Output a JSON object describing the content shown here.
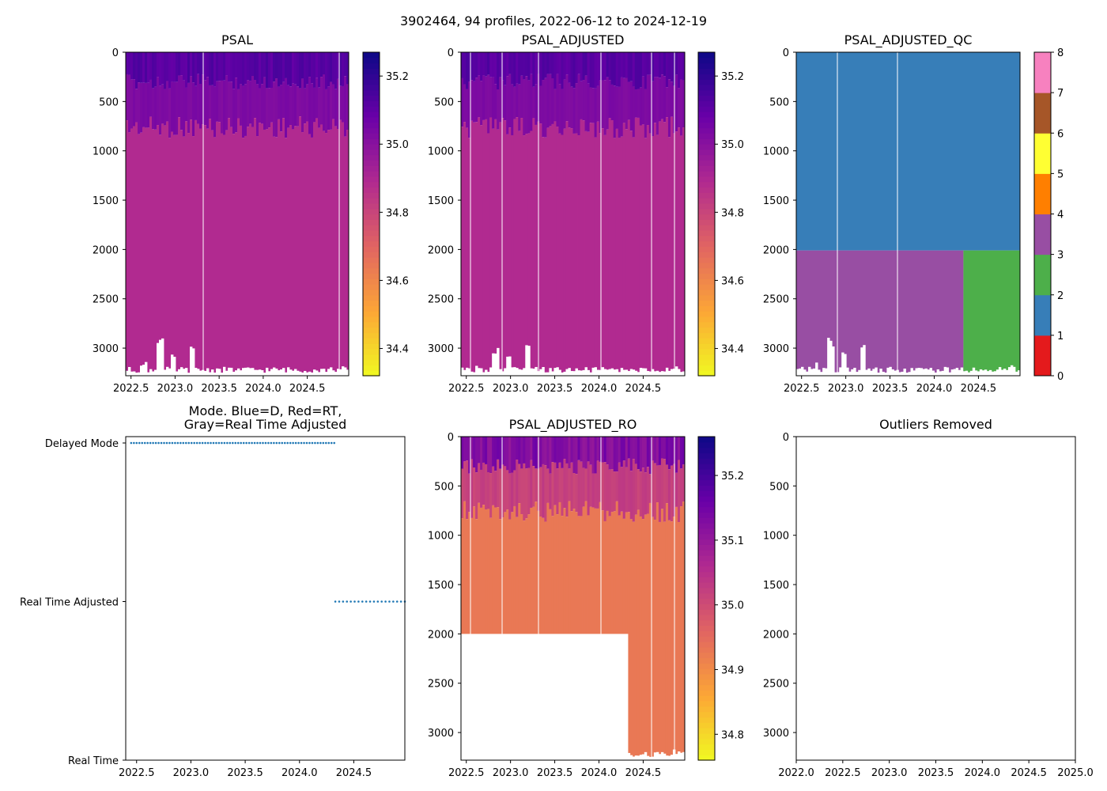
{
  "suptitle": "3902464, 94 profiles, 2022-06-12 to 2024-12-19",
  "colors": {
    "plasma": [
      "#f0f921",
      "#fca636",
      "#e16462",
      "#b12a90",
      "#6a00a8",
      "#0d0887"
    ],
    "set1": [
      "#e41a1c",
      "#377eb8",
      "#4daf4a",
      "#984ea3",
      "#ff7f00",
      "#ffff33",
      "#a65628",
      "#f781bf",
      "#999999"
    ],
    "mode_dot": "#1f77b4"
  },
  "chart_data": [
    {
      "id": "psal",
      "type": "heatmap",
      "title": "PSAL",
      "xticks": [
        "2022.5",
        "2023.0",
        "2023.5",
        "2024.0",
        "2024.5"
      ],
      "xtick_values": [
        2022.5,
        2023.0,
        2023.5,
        2024.0,
        2024.5
      ],
      "xlim": [
        2022.44,
        2024.97
      ],
      "ylim": [
        3280,
        0
      ],
      "yticks": [
        "0",
        "500",
        "1000",
        "1500",
        "2000",
        "2500",
        "3000"
      ],
      "ytick_values": [
        0,
        500,
        1000,
        1500,
        2000,
        2500,
        3000
      ],
      "colorbar": {
        "range": [
          34.32,
          35.27
        ],
        "ticks": [
          "34.4",
          "34.6",
          "34.8",
          "35.0",
          "35.2"
        ],
        "tick_values": [
          34.4,
          34.6,
          34.8,
          35.0,
          35.2
        ]
      },
      "layers": [
        {
          "depth": [
            0,
            300
          ],
          "value": 35.12
        },
        {
          "depth": [
            300,
            760
          ],
          "value": 35.03
        },
        {
          "depth": [
            760,
            3280
          ],
          "value": 34.89
        }
      ]
    },
    {
      "id": "psal-adjusted",
      "type": "heatmap",
      "title": "PSAL_ADJUSTED",
      "xticks": [
        "2022.5",
        "2023.0",
        "2023.5",
        "2024.0",
        "2024.5"
      ],
      "xtick_values": [
        2022.5,
        2023.0,
        2023.5,
        2024.0,
        2024.5
      ],
      "xlim": [
        2022.44,
        2024.97
      ],
      "ylim": [
        3280,
        0
      ],
      "yticks": [
        "0",
        "500",
        "1000",
        "1500",
        "2000",
        "2500",
        "3000"
      ],
      "ytick_values": [
        0,
        500,
        1000,
        1500,
        2000,
        2500,
        3000
      ],
      "colorbar": {
        "range": [
          34.32,
          35.27
        ],
        "ticks": [
          "34.4",
          "34.6",
          "34.8",
          "35.0",
          "35.2"
        ],
        "tick_values": [
          34.4,
          34.6,
          34.8,
          35.0,
          35.2
        ]
      },
      "layers": [
        {
          "depth": [
            0,
            300
          ],
          "value": 35.12
        },
        {
          "depth": [
            300,
            760
          ],
          "value": 35.03
        },
        {
          "depth": [
            760,
            3280
          ],
          "value": 34.89
        }
      ]
    },
    {
      "id": "psal-adjusted-qc",
      "type": "heatmap",
      "title": "PSAL_ADJUSTED_QC",
      "xticks": [
        "2022.5",
        "2023.0",
        "2023.5",
        "2024.0",
        "2024.5"
      ],
      "xtick_values": [
        2022.5,
        2023.0,
        2023.5,
        2024.0,
        2024.5
      ],
      "xlim": [
        2022.44,
        2024.97
      ],
      "ylim": [
        3280,
        0
      ],
      "yticks": [
        "0",
        "500",
        "1000",
        "1500",
        "2000",
        "2500",
        "3000"
      ],
      "ytick_values": [
        0,
        500,
        1000,
        1500,
        2000,
        2500,
        3000
      ],
      "colorbar": {
        "range": [
          0,
          8
        ],
        "ticks": [
          "0",
          "1",
          "2",
          "3",
          "4",
          "5",
          "6",
          "7",
          "8"
        ],
        "tick_values": [
          0,
          1,
          2,
          3,
          4,
          5,
          6,
          7,
          8
        ]
      },
      "regions": [
        {
          "x": [
            2022.44,
            2024.97
          ],
          "depth": [
            0,
            2010
          ],
          "qc": 1
        },
        {
          "x": [
            2022.44,
            2024.33
          ],
          "depth": [
            2010,
            3280
          ],
          "qc": 3
        },
        {
          "x": [
            2024.33,
            2024.97
          ],
          "depth": [
            2010,
            3280
          ],
          "qc": 2
        }
      ]
    },
    {
      "id": "mode",
      "type": "scatter",
      "title": "Mode. Blue=D, Red=RT,\nGray=Real Time Adjusted",
      "xticks": [
        "2022.5",
        "2023.0",
        "2023.5",
        "2024.0",
        "2024.5"
      ],
      "xtick_values": [
        2022.5,
        2023.0,
        2023.5,
        2024.0,
        2024.5
      ],
      "xlim": [
        2022.4,
        2024.97
      ],
      "yticks": [
        "Delayed Mode",
        "Real Time Adjusted",
        "Real Time"
      ],
      "ytick_values": [
        1.0,
        0.5,
        0.0
      ],
      "ylim": [
        0,
        1.02
      ],
      "series": [
        {
          "name": "Delayed Mode",
          "y": 1.0,
          "x_start": 2022.45,
          "x_end": 2024.32,
          "count": 75
        },
        {
          "name": "Real Time Adjusted",
          "y": 0.5,
          "x_start": 2024.33,
          "x_end": 2024.97,
          "count": 19
        }
      ]
    },
    {
      "id": "psal-adjusted-ro",
      "type": "heatmap",
      "title": "PSAL_ADJUSTED_RO",
      "xticks": [
        "2022.5",
        "2023.0",
        "2023.5",
        "2024.0",
        "2024.5"
      ],
      "xtick_values": [
        2022.5,
        2023.0,
        2023.5,
        2024.0,
        2024.5
      ],
      "xlim": [
        2022.44,
        2024.97
      ],
      "ylim": [
        3280,
        0
      ],
      "yticks": [
        "0",
        "500",
        "1000",
        "1500",
        "2000",
        "2500",
        "3000"
      ],
      "ytick_values": [
        0,
        500,
        1000,
        1500,
        2000,
        2500,
        3000
      ],
      "colorbar": {
        "range": [
          34.76,
          35.26
        ],
        "ticks": [
          "34.8",
          "34.9",
          "35.0",
          "35.1",
          "35.2"
        ],
        "tick_values": [
          34.8,
          34.9,
          35.0,
          35.1,
          35.2
        ]
      },
      "layers": [
        {
          "depth": [
            0,
            300
          ],
          "value": 35.13
        },
        {
          "depth": [
            300,
            760
          ],
          "value": 35.02
        },
        {
          "depth": [
            760,
            3280
          ],
          "value": 34.93
        }
      ],
      "blank_region": {
        "x": [
          2022.44,
          2024.33
        ],
        "depth": [
          2000,
          3280
        ]
      }
    },
    {
      "id": "outliers",
      "type": "scatter",
      "title": "Outliers Removed",
      "xticks": [
        "2022.0",
        "2022.5",
        "2023.0",
        "2023.5",
        "2024.0",
        "2024.5",
        "2025.0"
      ],
      "xtick_values": [
        2022.0,
        2022.5,
        2023.0,
        2023.5,
        2024.0,
        2024.5,
        2025.0
      ],
      "xlim": [
        2022.0,
        2025.0
      ],
      "ylim": [
        3280,
        0
      ],
      "yticks": [
        "0",
        "500",
        "1000",
        "1500",
        "2000",
        "2500",
        "3000"
      ],
      "ytick_values": [
        0,
        500,
        1000,
        1500,
        2000,
        2500,
        3000
      ],
      "series": []
    }
  ]
}
